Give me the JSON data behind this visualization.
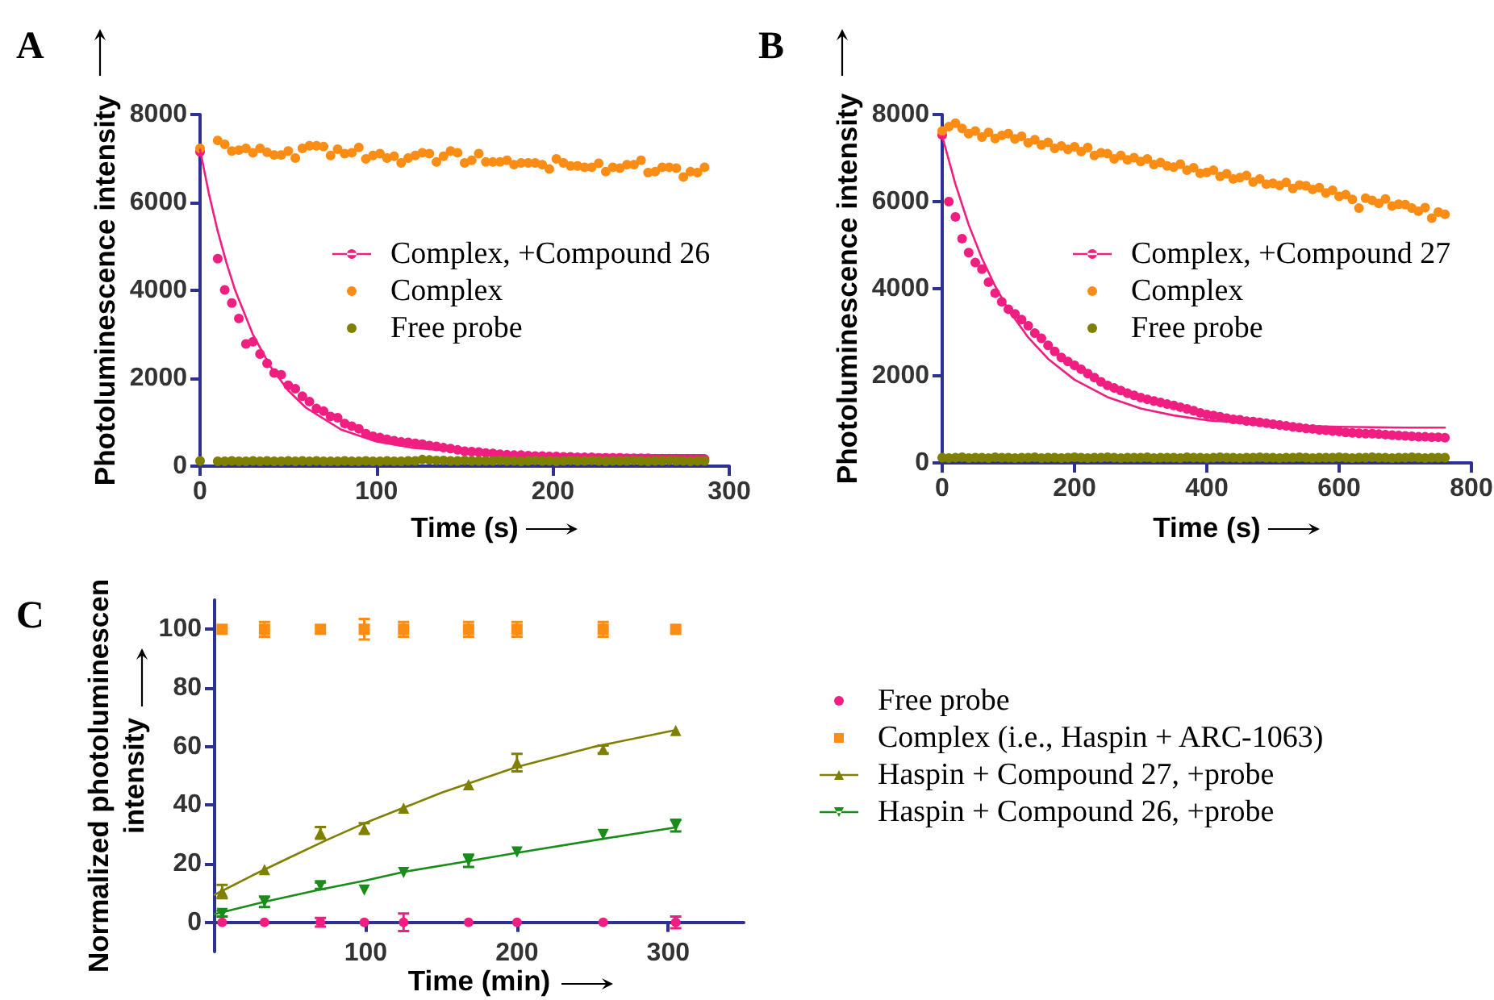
{
  "chart_data": [
    {
      "type": "scatter",
      "title": "A",
      "xlabel": "Time (s)",
      "ylabel": "Photoluminescence intensity",
      "xlim": [
        0,
        300
      ],
      "xticks": [
        0,
        100,
        200,
        300
      ],
      "ylim": [
        0,
        8000
      ],
      "yticks": [
        0,
        2000,
        4000,
        6000,
        8000
      ],
      "legend": "right",
      "x": [
        0,
        10,
        14,
        18,
        22,
        26,
        30,
        34,
        38,
        42,
        46,
        50,
        54,
        58,
        62,
        66,
        70,
        74,
        78,
        82,
        86,
        90,
        94,
        98,
        102,
        106,
        110,
        114,
        118,
        122,
        126,
        130,
        134,
        138,
        142,
        146,
        150,
        154,
        158,
        162,
        166,
        170,
        174,
        178,
        182,
        186,
        190,
        194,
        198,
        202,
        206,
        210,
        214,
        218,
        222,
        226,
        230,
        234,
        238,
        242,
        246,
        250,
        254,
        258,
        262,
        266,
        270,
        274,
        278,
        282,
        286
      ],
      "series": [
        {
          "name": "Complex, +Compound 26",
          "color": "#f01e80",
          "marker": "circle",
          "values": [
            7150,
            4720,
            4010,
            3710,
            3360,
            2780,
            2830,
            2550,
            2340,
            2120,
            2080,
            1840,
            1760,
            1590,
            1470,
            1310,
            1250,
            1130,
            1100,
            970,
            910,
            850,
            740,
            680,
            650,
            610,
            580,
            550,
            540,
            520,
            500,
            470,
            450,
            420,
            400,
            370,
            340,
            330,
            320,
            300,
            290,
            270,
            260,
            250,
            250,
            240,
            230,
            230,
            220,
            220,
            210,
            210,
            200,
            200,
            200,
            190,
            190,
            190,
            190,
            180,
            180,
            180,
            180,
            170,
            170,
            170,
            170,
            160,
            160,
            160,
            160
          ]
        },
        {
          "name": "Complex",
          "color": "#fb8c14",
          "marker": "circle",
          "values": [
            7230,
            7410,
            7320,
            7170,
            7190,
            7230,
            7130,
            7230,
            7140,
            7080,
            7080,
            7170,
            7010,
            7230,
            7290,
            7290,
            7270,
            7070,
            7210,
            7110,
            7130,
            7250,
            6990,
            7070,
            7110,
            7010,
            7050,
            6900,
            7010,
            7070,
            7130,
            7110,
            6920,
            7050,
            7170,
            7130,
            6900,
            6960,
            7110,
            6920,
            6920,
            6920,
            6960,
            6860,
            6900,
            6900,
            6900,
            6860,
            6760,
            6990,
            6900,
            6830,
            6830,
            6800,
            6800,
            6890,
            6700,
            6800,
            6780,
            6860,
            6860,
            6960,
            6680,
            6700,
            6800,
            6800,
            6780,
            6580,
            6700,
            6680,
            6800
          ]
        },
        {
          "name": "Free probe",
          "color": "#808000",
          "marker": "circle",
          "values": [
            120,
            110,
            110,
            120,
            110,
            110,
            120,
            110,
            120,
            110,
            110,
            120,
            110,
            120,
            110,
            120,
            110,
            110,
            110,
            120,
            110,
            110,
            120,
            110,
            110,
            120,
            110,
            110,
            120,
            120,
            150,
            140,
            130,
            130,
            120,
            120,
            130,
            120,
            120,
            120,
            120,
            130,
            120,
            120,
            110,
            120,
            130,
            120,
            120,
            110,
            120,
            130,
            120,
            120,
            130,
            120,
            110,
            120,
            120,
            120,
            130,
            120,
            110,
            120,
            120,
            130,
            120,
            120,
            110,
            120,
            120
          ]
        },
        {
          "type": "line",
          "color": "#f01e80",
          "marker": "none",
          "x": [
            0,
            5,
            10,
            15,
            20,
            30,
            40,
            50,
            60,
            80,
            100,
            120,
            150,
            180,
            220,
            260,
            286
          ],
          "values": [
            7200,
            6200,
            5350,
            4620,
            3990,
            2990,
            2260,
            1720,
            1330,
            830,
            560,
            420,
            320,
            280,
            260,
            250,
            250
          ]
        }
      ]
    },
    {
      "type": "scatter",
      "title": "B",
      "xlabel": "Time (s)",
      "ylabel": "Photoluminescence intensity",
      "xlim": [
        0,
        800
      ],
      "xticks": [
        0,
        200,
        400,
        600,
        800
      ],
      "ylim": [
        0,
        8000
      ],
      "yticks": [
        0,
        2000,
        4000,
        6000,
        8000
      ],
      "legend": "right",
      "x": [
        0,
        10,
        20,
        30,
        40,
        50,
        60,
        70,
        80,
        90,
        100,
        110,
        120,
        130,
        140,
        150,
        160,
        170,
        180,
        190,
        200,
        210,
        220,
        230,
        240,
        250,
        260,
        270,
        280,
        290,
        300,
        310,
        320,
        330,
        340,
        350,
        360,
        370,
        380,
        390,
        400,
        410,
        420,
        430,
        440,
        450,
        460,
        470,
        480,
        490,
        500,
        510,
        520,
        530,
        540,
        550,
        560,
        570,
        580,
        590,
        600,
        610,
        620,
        630,
        640,
        650,
        660,
        670,
        680,
        690,
        700,
        710,
        720,
        730,
        740,
        750,
        760
      ],
      "series": [
        {
          "name": "Complex, +Compound 27",
          "color": "#f01e80",
          "marker": "circle",
          "values": [
            7530,
            6000,
            5650,
            5150,
            4830,
            4600,
            4450,
            4150,
            3900,
            3700,
            3530,
            3420,
            3290,
            3150,
            2980,
            2860,
            2700,
            2560,
            2420,
            2330,
            2240,
            2150,
            2050,
            1960,
            1860,
            1780,
            1720,
            1660,
            1600,
            1550,
            1500,
            1460,
            1420,
            1390,
            1350,
            1320,
            1280,
            1240,
            1200,
            1150,
            1110,
            1090,
            1060,
            1030,
            1000,
            990,
            960,
            950,
            930,
            910,
            890,
            870,
            850,
            830,
            810,
            790,
            780,
            760,
            750,
            730,
            720,
            700,
            690,
            680,
            670,
            670,
            660,
            650,
            640,
            630,
            620,
            610,
            600,
            600,
            590,
            590,
            580
          ]
        },
        {
          "name": "Complex",
          "color": "#fb8c14",
          "marker": "circle",
          "values": [
            7620,
            7720,
            7800,
            7680,
            7560,
            7620,
            7480,
            7590,
            7450,
            7520,
            7560,
            7440,
            7500,
            7350,
            7420,
            7300,
            7360,
            7220,
            7280,
            7200,
            7260,
            7150,
            7240,
            7060,
            7120,
            7100,
            6980,
            7060,
            6960,
            7010,
            6920,
            6980,
            6850,
            6900,
            6820,
            6790,
            6860,
            6720,
            6780,
            6650,
            6670,
            6720,
            6580,
            6640,
            6520,
            6550,
            6600,
            6450,
            6520,
            6400,
            6420,
            6370,
            6440,
            6300,
            6380,
            6360,
            6280,
            6320,
            6200,
            6260,
            6120,
            6160,
            6050,
            5850,
            6080,
            6030,
            5960,
            6060,
            5900,
            5940,
            5930,
            5850,
            5780,
            5860,
            5620,
            5760,
            5710
          ]
        },
        {
          "name": "Free probe",
          "color": "#808000",
          "marker": "circle",
          "values": [
            120,
            110,
            120,
            130,
            110,
            120,
            120,
            110,
            130,
            120,
            120,
            110,
            120,
            120,
            130,
            110,
            120,
            120,
            110,
            120,
            130,
            120,
            110,
            120,
            120,
            130,
            120,
            110,
            120,
            120,
            120,
            130,
            110,
            120,
            120,
            120,
            110,
            130,
            120,
            120,
            110,
            120,
            130,
            120,
            120,
            110,
            120,
            120,
            130,
            120,
            120,
            110,
            120,
            120,
            130,
            120,
            110,
            120,
            120,
            120,
            130,
            120,
            110,
            120,
            120,
            130,
            120,
            120,
            110,
            120,
            120,
            130,
            120,
            110,
            120,
            120,
            120
          ]
        },
        {
          "type": "line",
          "color": "#f01e80",
          "marker": "none",
          "x": [
            0,
            20,
            40,
            60,
            80,
            100,
            130,
            160,
            200,
            250,
            300,
            350,
            400,
            500,
            600,
            700,
            760
          ],
          "values": [
            7500,
            6400,
            5470,
            4700,
            4060,
            3520,
            2880,
            2390,
            1910,
            1510,
            1250,
            1090,
            980,
            870,
            830,
            810,
            810
          ]
        }
      ]
    },
    {
      "type": "scatter",
      "title": "C",
      "xlabel": "Time (min)",
      "ylabel": "Normalized photoluminescen\nintensity",
      "xlim": [
        0,
        350
      ],
      "xticks": [
        100,
        200,
        300
      ],
      "ylim": [
        -10,
        110
      ],
      "yticks": [
        0,
        20,
        40,
        60,
        80,
        100
      ],
      "legend": "right",
      "x": [
        5,
        33,
        70,
        99,
        125,
        168,
        200,
        257,
        305
      ],
      "series": [
        {
          "name": "Free probe",
          "color": "#f01e80",
          "marker": "circle",
          "values": [
            0,
            0,
            0,
            0,
            0,
            0,
            0,
            0,
            0
          ],
          "errors": [
            null,
            null,
            1.5,
            null,
            3,
            null,
            null,
            null,
            2
          ]
        },
        {
          "name": "Complex (i.e., Haspin + ARC-1063)",
          "color": "#fb8c14",
          "marker": "square",
          "values": [
            100,
            100,
            100,
            100,
            100,
            100,
            100,
            100,
            100
          ],
          "errors": [
            null,
            2.5,
            null,
            3.5,
            2.5,
            2.5,
            2.5,
            2.5,
            null
          ]
        },
        {
          "name": "Haspin + Compound 27, +probe",
          "color": "#808000",
          "marker": "triangle",
          "values": [
            10.5,
            18,
            30.5,
            32,
            39,
            47,
            54.5,
            59,
            65.5
          ],
          "errors": [
            2.3,
            null,
            2,
            1.8,
            null,
            null,
            3,
            1.3,
            null
          ]
        },
        {
          "name": "Haspin + Compound 26, +probe",
          "color": "#1a8c1a",
          "marker": "triangle-down",
          "values": [
            3,
            7,
            12.5,
            11,
            17,
            21,
            24,
            30,
            33
          ],
          "errors": [
            1,
            1.8,
            1.1,
            null,
            null,
            2.1,
            null,
            null,
            2
          ]
        },
        {
          "type": "line",
          "color": "#808000",
          "marker": "none",
          "x": [
            0,
            25,
            50,
            75,
            100,
            150,
            200,
            250,
            305
          ],
          "values": [
            9.4,
            16,
            22.2,
            28.3,
            34,
            44.2,
            53,
            59.8,
            65.6
          ]
        },
        {
          "type": "line",
          "color": "#1a8c1a",
          "marker": "none",
          "x": [
            0,
            33,
            70,
            100,
            125,
            168,
            200,
            257,
            305
          ],
          "values": [
            2.8,
            7,
            11.2,
            14.3,
            17.2,
            20.9,
            23.7,
            28.5,
            32.4
          ]
        }
      ]
    }
  ]
}
